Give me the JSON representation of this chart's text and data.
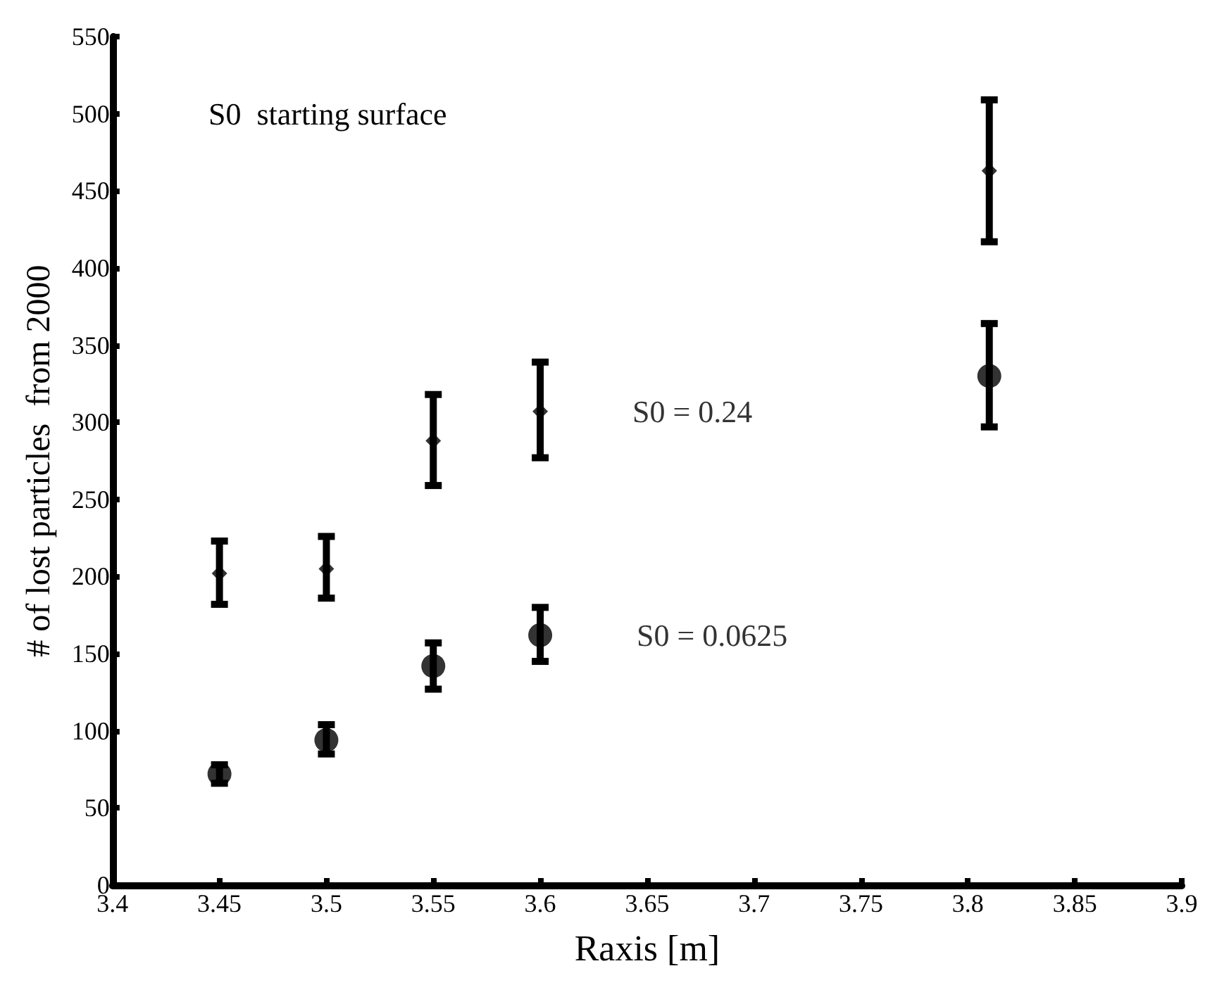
{
  "chart_data": {
    "type": "scatter",
    "xlabel": "Raxis [m]",
    "ylabel": "# of lost particles  from 2000",
    "annotations": [
      "S0  starting surface"
    ],
    "x": [
      3.45,
      3.5,
      3.55,
      3.6,
      3.81
    ],
    "xlim": [
      3.4,
      3.9
    ],
    "xticks": [
      3.4,
      3.45,
      3.5,
      3.55,
      3.6,
      3.65,
      3.7,
      3.75,
      3.8,
      3.85,
      3.9
    ],
    "ylim": [
      0,
      550
    ],
    "yticks": [
      0,
      50,
      100,
      150,
      200,
      250,
      300,
      350,
      400,
      450,
      500,
      550
    ],
    "grid": false,
    "legend": false,
    "marker": "circle",
    "series": [
      {
        "name": "S0 = 0.24",
        "color": "#000000",
        "marker": "diamond",
        "values": [
          202,
          205,
          288,
          307,
          463
        ],
        "errors": [
          [
            182,
            223
          ],
          [
            186,
            226
          ],
          [
            259,
            318
          ],
          [
            277,
            339
          ],
          [
            417,
            509
          ]
        ]
      },
      {
        "name": "S0 = 0.0625",
        "color": "#000000",
        "values": [
          72,
          94,
          142,
          162,
          330
        ],
        "errors": [
          [
            66,
            78
          ],
          [
            85,
            104
          ],
          [
            127,
            157
          ],
          [
            145,
            180
          ],
          [
            297,
            364
          ]
        ]
      }
    ]
  }
}
